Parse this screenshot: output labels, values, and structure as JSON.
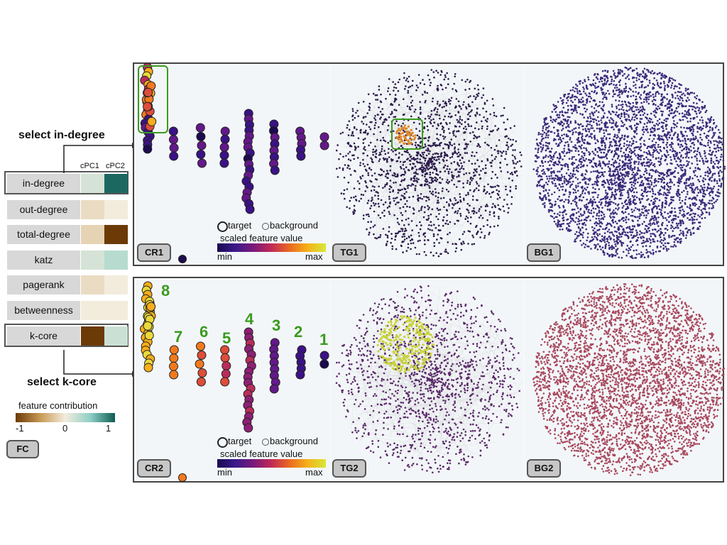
{
  "fc_table": {
    "col_headers": [
      "cPC1",
      "cPC2"
    ],
    "rows": [
      {
        "label": "in-degree",
        "selected": true,
        "cpc1": 0.15,
        "cpc2": 0.95
      },
      {
        "label": "out-degree",
        "selected": false,
        "cpc1": -0.1,
        "cpc2": 0.0
      },
      {
        "label": "total-degree",
        "selected": false,
        "cpc1": -0.15,
        "cpc2": -1.0
      },
      {
        "label": "katz",
        "selected": false,
        "cpc1": 0.15,
        "cpc2": 0.3
      },
      {
        "label": "pagerank",
        "selected": false,
        "cpc1": -0.1,
        "cpc2": 0.0
      },
      {
        "label": "betweenness",
        "selected": false,
        "cpc1": 0.0,
        "cpc2": 0.0
      },
      {
        "label": "k-core",
        "selected": true,
        "cpc1": -1.0,
        "cpc2": 0.2
      }
    ]
  },
  "annotations": {
    "select_top": "select in-degree",
    "select_bottom": "select k-core"
  },
  "fc_legend": {
    "title": "feature contribution",
    "min": "-1",
    "mid": "0",
    "max": "1",
    "badge": "FC",
    "colors": [
      "#6b3a07",
      "#c89a55",
      "#f3ecdd",
      "#8fcfc6",
      "#0f5d56"
    ]
  },
  "scaled_legend": {
    "target": "target",
    "background": "background",
    "title": "scaled feature value",
    "min": "min",
    "max": "max"
  },
  "panels": {
    "top": {
      "cr": "CR1",
      "tg": "TG1",
      "bg": "BG1",
      "bg_color": "#3b2a7a"
    },
    "bottom": {
      "cr": "CR2",
      "tg": "TG2",
      "bg": "BG2",
      "bg_color": "#a8485e",
      "cluster_numbers": [
        "8",
        "7",
        "6",
        "5",
        "4",
        "3",
        "2",
        "1"
      ]
    }
  },
  "colors": {
    "highlight_green": "#3a9a1e",
    "node_dark": "#2a1a4a"
  }
}
